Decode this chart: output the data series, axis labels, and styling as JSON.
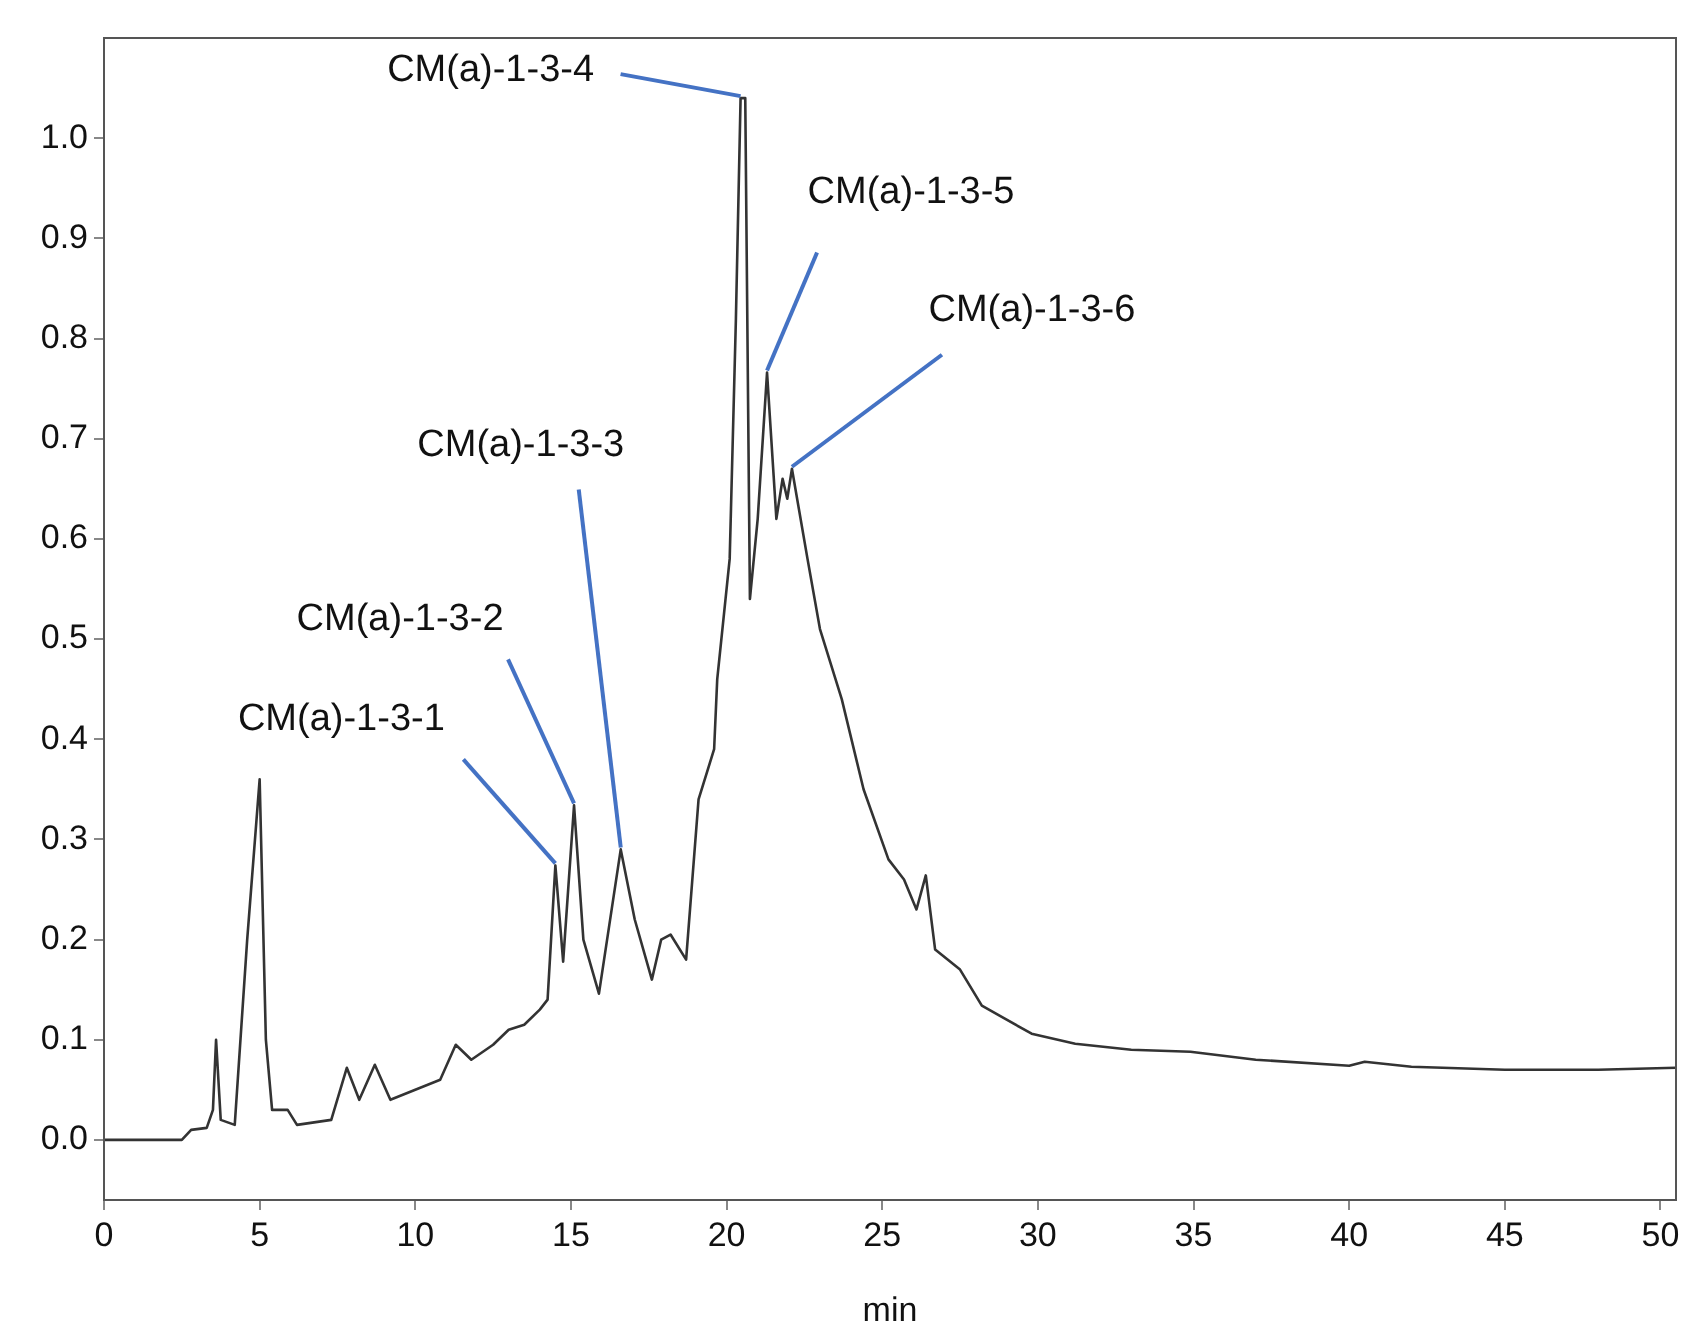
{
  "chart_data": {
    "type": "line",
    "xlabel": "min",
    "xlim": [
      0,
      50.5
    ],
    "xticks": [
      0,
      5,
      10,
      15,
      20,
      25,
      30,
      35,
      40,
      45,
      50
    ],
    "ylim": [
      -0.06,
      1.1
    ],
    "yticks": [
      {
        "value": 0,
        "label": "0.0"
      },
      0.1,
      0.2,
      0.3,
      0.4,
      0.5,
      0.6,
      0.7,
      0.8,
      0.9,
      {
        "value": 1,
        "label": "1.0"
      }
    ],
    "grid": false,
    "legend": false,
    "marker": "none",
    "line_style": "solid",
    "series": [
      {
        "color": "#333333",
        "x": [
          0,
          2.5,
          2.8,
          3.3,
          3.5,
          3.6,
          3.75,
          4.2,
          4.6,
          5.0,
          5.2,
          5.4,
          5.9,
          6.2,
          7.3,
          7.8,
          8.2,
          8.7,
          9.2,
          10,
          10.8,
          11.3,
          11.8,
          12.5,
          13,
          13.5,
          14,
          14.25,
          14.5,
          14.75,
          15.1,
          15.4,
          15.9,
          16.6,
          17.05,
          17.6,
          17.9,
          18.2,
          18.7,
          19.1,
          19.6,
          19.7,
          20.1,
          20.3,
          20.45,
          20.6,
          20.75,
          21.0,
          21.3,
          21.6,
          21.8,
          21.95,
          22.1,
          22.6,
          23.0,
          23.7,
          24.4,
          25.2,
          25.7,
          26.1,
          26.4,
          26.7,
          27.5,
          28.2,
          29.8,
          31.2,
          33,
          34.9,
          37,
          40,
          40.5,
          42,
          45,
          48,
          50.5
        ],
        "values": [
          0,
          0,
          0.01,
          0.012,
          0.03,
          0.1,
          0.02,
          0.015,
          0.2,
          0.36,
          0.1,
          0.03,
          0.03,
          0.015,
          0.02,
          0.072,
          0.04,
          0.075,
          0.04,
          0.05,
          0.06,
          0.095,
          0.08,
          0.095,
          0.11,
          0.115,
          0.13,
          0.14,
          0.274,
          0.178,
          0.334,
          0.2,
          0.146,
          0.29,
          0.22,
          0.16,
          0.2,
          0.205,
          0.18,
          0.34,
          0.39,
          0.46,
          0.58,
          0.82,
          1.04,
          1.04,
          0.54,
          0.62,
          0.766,
          0.62,
          0.66,
          0.64,
          0.67,
          0.58,
          0.51,
          0.44,
          0.35,
          0.28,
          0.26,
          0.23,
          0.264,
          0.19,
          0.17,
          0.134,
          0.106,
          0.096,
          0.09,
          0.088,
          0.08,
          0.074,
          0.078,
          0.073,
          0.07,
          0.07,
          0.072
        ]
      }
    ],
    "annotations": [
      {
        "text": "CM(a)-1-3-1",
        "x": 14.5,
        "y": 0.274
      },
      {
        "text": "CM(a)-1-3-2",
        "x": 15.1,
        "y": 0.334
      },
      {
        "text": "CM(a)-1-3-3",
        "x": 16.6,
        "y": 0.29
      },
      {
        "text": "CM(a)-1-3-4",
        "x": 20.45,
        "y": 1.04
      },
      {
        "text": "CM(a)-1-3-5",
        "x": 21.3,
        "y": 0.766
      },
      {
        "text": "CM(a)-1-3-6",
        "x": 22.1,
        "y": 0.67
      }
    ]
  }
}
